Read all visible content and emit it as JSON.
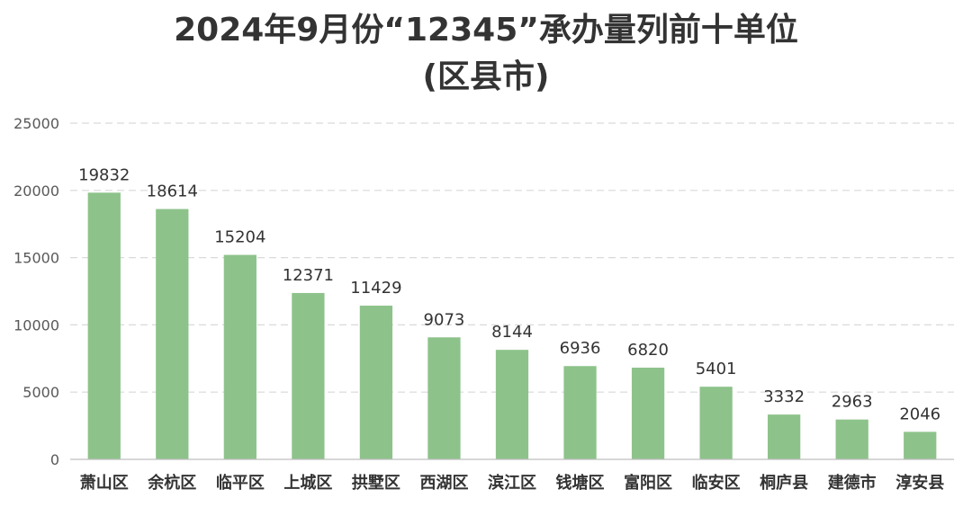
{
  "chart_data": {
    "type": "bar",
    "title": "2024年9月份“12345”承办量列前十单位",
    "subtitle": "(区县市)",
    "categories": [
      "萧山区",
      "余杭区",
      "临平区",
      "上城区",
      "拱墅区",
      "西湖区",
      "滨江区",
      "钱塘区",
      "富阳区",
      "临安区",
      "桐庐县",
      "建德市",
      "淳安县"
    ],
    "values": [
      19832,
      18614,
      15204,
      12371,
      11429,
      9073,
      8144,
      6936,
      6820,
      5401,
      3332,
      2963,
      2046
    ],
    "ylim": [
      0,
      25000
    ],
    "yticks": [
      0,
      5000,
      10000,
      15000,
      20000,
      25000
    ],
    "xlabel": "",
    "ylabel": "",
    "grid": true,
    "legend": "none",
    "bar_color": "#8dc38a"
  }
}
